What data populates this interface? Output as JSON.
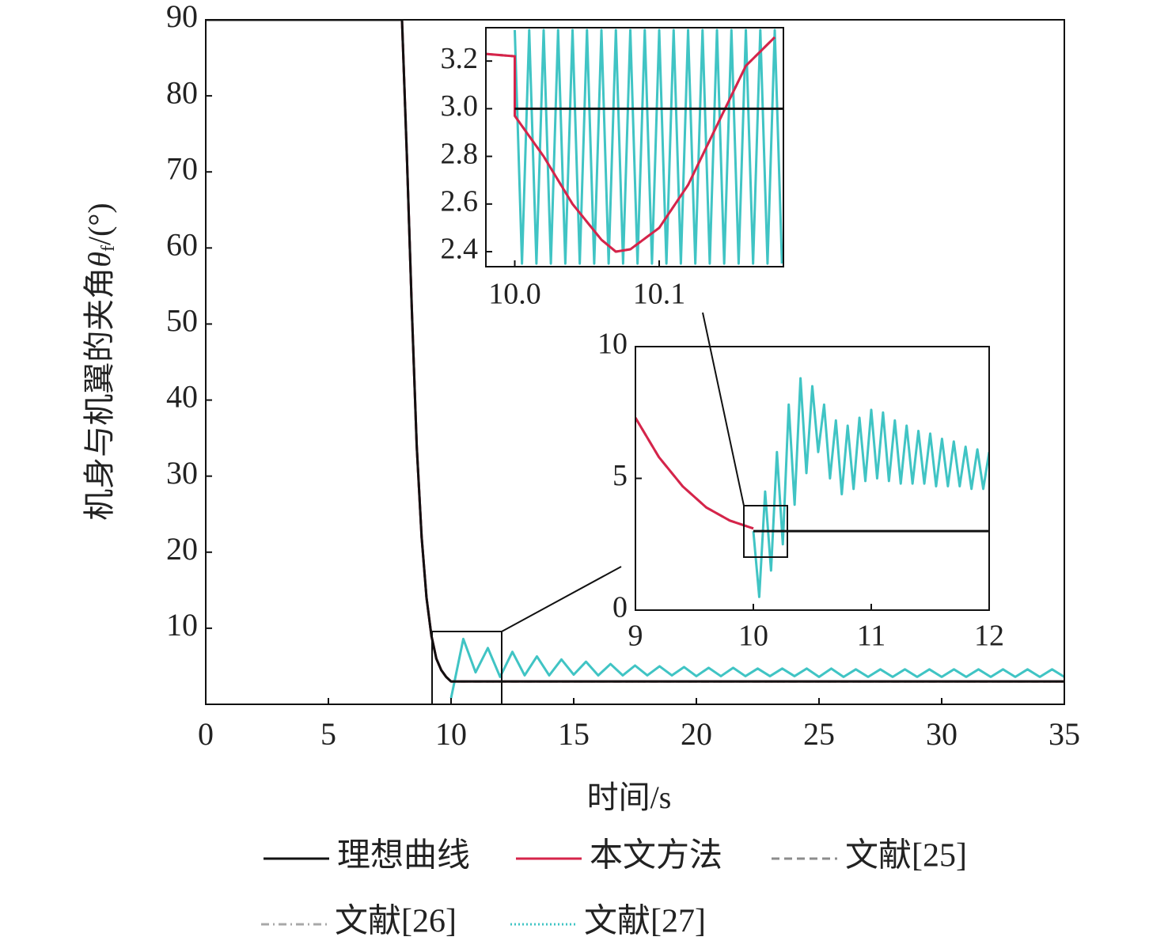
{
  "chart_data": [
    {
      "type": "line",
      "x_label": "时间/s",
      "y_label": [
        "机身与机翼的夹角",
        "θ",
        "f",
        "/(°)"
      ],
      "xlim": [
        0,
        35
      ],
      "ylim": [
        0,
        90
      ],
      "xticks": [
        0,
        5,
        10,
        15,
        20,
        25,
        30,
        35
      ],
      "yticks": [
        10,
        20,
        30,
        40,
        50,
        60,
        70,
        80,
        90
      ],
      "x": [
        0,
        8,
        8.2,
        8.4,
        8.6,
        8.8,
        9,
        9.2,
        9.4,
        9.6,
        9.8,
        10,
        35
      ],
      "series": [
        {
          "name": "理想曲线",
          "color": "#111111",
          "dash": "solid",
          "values": [
            90,
            90,
            72,
            52,
            34,
            22,
            14,
            9,
            6,
            4.5,
            3.6,
            3,
            3
          ]
        },
        {
          "name": "本文方法",
          "color": "#d6244a",
          "dash": "solid",
          "values": [
            90,
            90,
            72,
            52,
            34,
            22,
            14,
            9,
            6,
            4.5,
            3.6,
            3,
            3
          ]
        },
        {
          "name": "文献[25]",
          "color": "#8c8c8c",
          "dash": "dashed",
          "values": [
            90,
            90,
            72,
            52,
            34,
            22,
            14,
            9,
            6,
            4.5,
            3.6,
            3,
            3
          ]
        },
        {
          "name": "文献[26]",
          "color": "#a8a8a8",
          "dash": "dashdot",
          "values": [
            90,
            90,
            72,
            52,
            34,
            22,
            14,
            9,
            6,
            4.5,
            3.6,
            3,
            3
          ]
        },
        {
          "name": "文献[27]",
          "color": "#40c4c4",
          "dash": "dotted",
          "x": [
            10,
            10.5,
            11,
            11.5,
            12,
            12.5,
            13,
            13.5,
            14,
            14.5,
            15,
            15.5,
            16,
            16.5,
            17,
            17.5,
            18,
            18.5,
            19,
            19.5,
            20,
            20.5,
            21,
            21.5,
            22,
            22.5,
            23,
            23.5,
            24,
            24.5,
            25,
            25.5,
            26,
            26.5,
            27,
            27.5,
            28,
            28.5,
            29,
            29.5,
            30,
            30.5,
            31,
            31.5,
            32,
            32.5,
            33,
            33.5,
            34,
            34.5,
            35
          ],
          "values": [
            0.8,
            8.6,
            4.2,
            7.4,
            3.6,
            6.9,
            3.8,
            6.3,
            3.8,
            5.9,
            3.9,
            5.6,
            3.8,
            5.3,
            3.8,
            5.1,
            3.8,
            5.0,
            3.8,
            4.9,
            3.7,
            4.8,
            3.7,
            4.8,
            3.7,
            4.7,
            3.7,
            4.7,
            3.7,
            4.7,
            3.6,
            4.7,
            3.6,
            4.6,
            3.6,
            4.6,
            3.6,
            4.6,
            3.6,
            4.6,
            3.6,
            4.6,
            3.6,
            4.6,
            3.6,
            4.6,
            3.6,
            4.6,
            3.6,
            4.6,
            3.6
          ]
        }
      ]
    },
    {
      "type": "line",
      "xlim": [
        9,
        12
      ],
      "ylim": [
        0,
        10
      ],
      "xticks": [
        9,
        10,
        11,
        12
      ],
      "yticks": [
        0,
        5,
        10
      ],
      "series": [
        {
          "color": "#111111",
          "dash": "solid",
          "x": [
            10,
            12
          ],
          "values": [
            3,
            3
          ]
        },
        {
          "color": "#d6244a",
          "dash": "solid",
          "x": [
            9,
            9.2,
            9.4,
            9.6,
            9.8,
            10
          ],
          "values": [
            7.3,
            5.8,
            4.7,
            3.9,
            3.4,
            3.1
          ]
        },
        {
          "color": "#8c8c8c",
          "dash": "dashed",
          "x": [
            9,
            9.2,
            9.4,
            9.6,
            9.8,
            10
          ],
          "values": [
            7.3,
            5.8,
            4.7,
            3.9,
            3.4,
            3.1
          ]
        },
        {
          "color": "#40c4c4",
          "dash": "solid",
          "x": [
            10,
            10.05,
            10.1,
            10.15,
            10.2,
            10.25,
            10.3,
            10.35,
            10.4,
            10.45,
            10.5,
            10.55,
            10.6,
            10.65,
            10.7,
            10.75,
            10.8,
            10.85,
            10.9,
            10.95,
            11,
            11.05,
            11.1,
            11.15,
            11.2,
            11.25,
            11.3,
            11.35,
            11.4,
            11.45,
            11.5,
            11.55,
            11.6,
            11.65,
            11.7,
            11.75,
            11.8,
            11.85,
            11.9,
            11.95,
            12
          ],
          "values": [
            3.0,
            0.5,
            4.5,
            1.5,
            6.0,
            2.5,
            7.8,
            4.0,
            8.8,
            5.2,
            8.5,
            6.0,
            7.8,
            5.0,
            7.2,
            4.4,
            7.0,
            4.6,
            7.3,
            4.9,
            7.6,
            5.0,
            7.5,
            4.9,
            7.2,
            4.8,
            7.0,
            4.8,
            6.8,
            4.8,
            6.7,
            4.7,
            6.5,
            4.7,
            6.4,
            4.7,
            6.2,
            4.6,
            6.1,
            4.6,
            6.0
          ]
        }
      ]
    },
    {
      "type": "line",
      "xlim": [
        9.98,
        10.186
      ],
      "ylim": [
        2.337,
        3.34
      ],
      "xticks": [
        {
          "value": 10,
          "label": "10.0"
        },
        10.1
      ],
      "yticks": [
        2.4,
        2.6,
        2.8,
        {
          "value": 3,
          "label": "3.0"
        },
        3.2
      ],
      "series": [
        {
          "color": "#111111",
          "dash": "solid",
          "x": [
            10,
            10.186
          ],
          "values": [
            3,
            3
          ]
        },
        {
          "color": "#d6244a",
          "dash": "solid",
          "x": [
            9.98,
            10,
            10,
            10.02,
            10.04,
            10.06,
            10.07,
            10.08,
            10.1,
            10.12,
            10.14,
            10.16,
            10.18
          ],
          "values": [
            3.23,
            3.22,
            2.97,
            2.8,
            2.6,
            2.45,
            2.4,
            2.41,
            2.5,
            2.68,
            2.93,
            3.18,
            3.3
          ]
        },
        {
          "color": "#8c8c8c",
          "dash": "dashed",
          "x": [
            9.98,
            10,
            10,
            10.02,
            10.04,
            10.06,
            10.07,
            10.08,
            10.1,
            10.12,
            10.14,
            10.16,
            10.18
          ],
          "values": [
            3.23,
            3.22,
            2.97,
            2.8,
            2.6,
            2.45,
            2.4,
            2.41,
            2.5,
            2.68,
            2.93,
            3.18,
            3.3
          ]
        },
        {
          "color": "#40c4c4",
          "dash": "solid",
          "x": [
            10,
            10.005,
            10.01,
            10.015,
            10.02,
            10.025,
            10.03,
            10.035,
            10.04,
            10.045,
            10.05,
            10.055,
            10.06,
            10.065,
            10.07,
            10.075,
            10.08,
            10.085,
            10.09,
            10.095,
            10.1,
            10.105,
            10.11,
            10.115,
            10.12,
            10.125,
            10.13,
            10.135,
            10.14,
            10.145,
            10.15,
            10.155,
            10.16,
            10.165,
            10.17,
            10.175,
            10.18,
            10.185
          ],
          "values": [
            3.33,
            2.35,
            3.33,
            2.35,
            3.33,
            2.35,
            3.33,
            2.35,
            3.33,
            2.35,
            3.33,
            2.35,
            3.33,
            2.35,
            3.33,
            2.35,
            3.33,
            2.35,
            3.33,
            2.35,
            3.33,
            2.35,
            3.33,
            2.35,
            3.33,
            2.35,
            3.33,
            2.35,
            3.33,
            2.35,
            3.33,
            2.35,
            3.33,
            2.35,
            3.33,
            2.35,
            3.33,
            2.35
          ]
        }
      ]
    }
  ]
}
